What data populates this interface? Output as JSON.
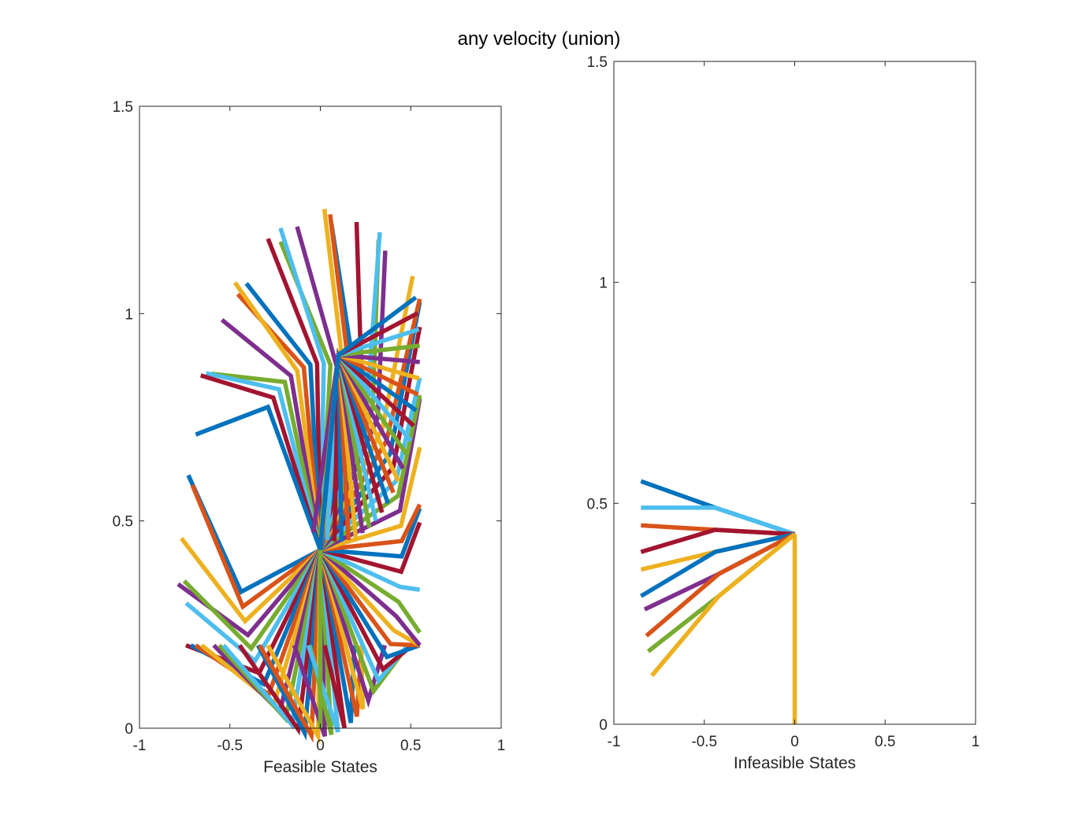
{
  "figure": {
    "title": "any velocity (union)"
  },
  "colors": [
    "#0072BD",
    "#D95319",
    "#EDB120",
    "#7E2F8E",
    "#77AC30",
    "#4DBEEE",
    "#A2142F"
  ],
  "chart_data": [
    {
      "type": "line",
      "xlabel": "Feasible States",
      "ylabel": "",
      "xlim": [
        -1,
        1
      ],
      "ylim": [
        0,
        1.5
      ],
      "xticks": [
        "-1",
        "-0.5",
        "0",
        "0.5",
        "1"
      ],
      "yticks": [
        "0",
        "0.5",
        "1",
        "1.5"
      ],
      "grid": false,
      "legend": "none",
      "stem": {
        "x": [
          0,
          0
        ],
        "y": [
          0,
          0.43
        ],
        "color": "#77AC30"
      },
      "fan_a": {
        "origin": [
          0,
          0.43
        ],
        "mid_radius": 0.45,
        "outer_radius": 0.45,
        "mid_angle_range_deg": [
          -167,
          130
        ],
        "count": 64
      },
      "fan_b": {
        "origin": [
          0.1,
          0.9
        ],
        "radius": 0.45,
        "angle_range_deg": [
          -108,
          18
        ],
        "count": 26
      }
    },
    {
      "type": "line",
      "xlabel": "Infeasible States",
      "ylabel": "",
      "xlim": [
        -1,
        1
      ],
      "ylim": [
        0,
        1.5
      ],
      "xticks": [
        "-1",
        "-0.5",
        "0",
        "0.5",
        "1"
      ],
      "yticks": [
        "0",
        "0.5",
        "1",
        "1.5"
      ],
      "grid": false,
      "legend": "none",
      "series": [
        {
          "x": [
            0,
            0
          ],
          "y": [
            0,
            0.43
          ],
          "color": "#EDB120"
        },
        {
          "x": [
            0,
            -0.44,
            -0.85
          ],
          "y": [
            0.43,
            0.49,
            0.55
          ],
          "color": "#0072BD"
        },
        {
          "x": [
            0,
            -0.44,
            -0.85
          ],
          "y": [
            0.43,
            0.49,
            0.49
          ],
          "color": "#4DBEEE"
        },
        {
          "x": [
            0,
            -0.44,
            -0.85
          ],
          "y": [
            0.43,
            0.44,
            0.45
          ],
          "color": "#D95319"
        },
        {
          "x": [
            0,
            -0.44,
            -0.85
          ],
          "y": [
            0.43,
            0.44,
            0.39
          ],
          "color": "#A2142F"
        },
        {
          "x": [
            0,
            -0.44,
            -0.85
          ],
          "y": [
            0.43,
            0.39,
            0.35
          ],
          "color": "#EDB120"
        },
        {
          "x": [
            0,
            -0.44,
            -0.85
          ],
          "y": [
            0.43,
            0.39,
            0.29
          ],
          "color": "#0072BD"
        },
        {
          "x": [
            0,
            -0.42,
            -0.83
          ],
          "y": [
            0.43,
            0.34,
            0.26
          ],
          "color": "#7E2F8E"
        },
        {
          "x": [
            0,
            -0.42,
            -0.82
          ],
          "y": [
            0.43,
            0.34,
            0.2
          ],
          "color": "#D95319"
        },
        {
          "x": [
            0,
            -0.42,
            -0.81
          ],
          "y": [
            0.43,
            0.29,
            0.165
          ],
          "color": "#77AC30"
        },
        {
          "x": [
            0,
            -0.42,
            -0.79
          ],
          "y": [
            0.43,
            0.29,
            0.11
          ],
          "color": "#EDB120"
        }
      ]
    }
  ]
}
